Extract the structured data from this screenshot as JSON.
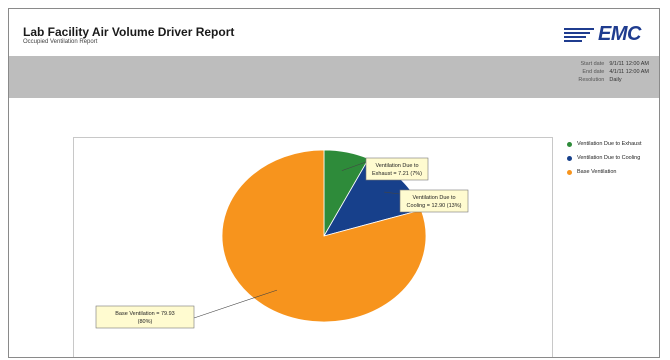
{
  "report": {
    "title": "Lab Facility Air Volume Driver Report",
    "subtitle": "Occupied Ventilation Report",
    "logo_text": "EMC"
  },
  "meta": [
    {
      "key": "Start date",
      "value": "9/1/11 12:00 AM"
    },
    {
      "key": "End date",
      "value": "4/1/11 12:00 AM"
    },
    {
      "key": "Resolution",
      "value": "Daily"
    }
  ],
  "colors": {
    "exhaust": "#2e8b3a",
    "cooling": "#17408b",
    "base": "#f7941d",
    "logo": "#1f3c8f",
    "band": "#bdbdbd",
    "callout_bg": "#fffbd0"
  },
  "chart_data": {
    "type": "pie",
    "title": "",
    "slices": [
      {
        "name": "Ventilation Due to Exhaust",
        "value": 7.21,
        "percent": 7,
        "callout": [
          "Ventilation Due to",
          "Exhaust = 7.21 (7%)"
        ],
        "color": "#2e8b3a"
      },
      {
        "name": "Ventilation Due to Cooling",
        "value": 12.9,
        "percent": 13,
        "callout": [
          "Ventilation Due to",
          "Cooling = 12.90 (13%)"
        ],
        "color": "#17408b"
      },
      {
        "name": "Base Ventilation",
        "value": 79.93,
        "percent": 80,
        "callout": [
          "Base Ventilation = 79.93",
          "(80%)"
        ],
        "color": "#f7941d"
      }
    ],
    "legend": [
      "Ventilation Due to Exhaust",
      "Ventilation Due to Cooling",
      "Base Ventilation"
    ],
    "legend_position": "right"
  }
}
